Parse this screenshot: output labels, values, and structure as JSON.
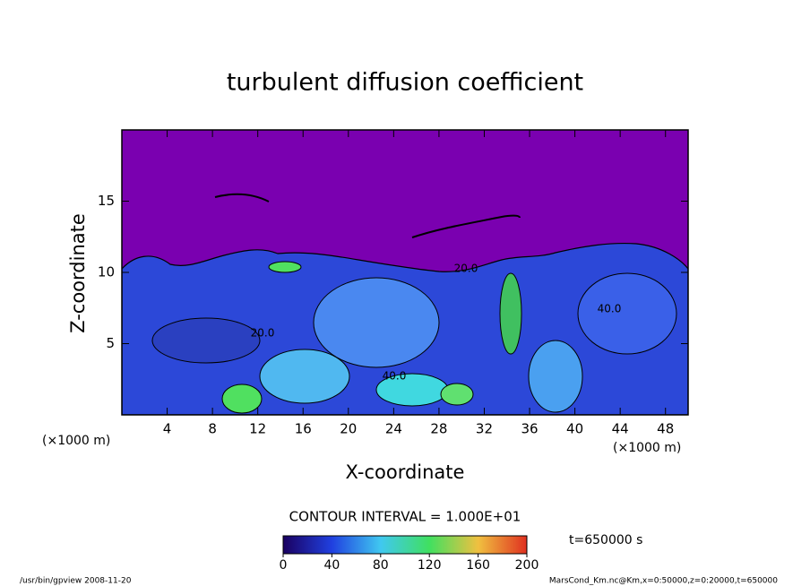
{
  "chart_data": {
    "type": "contour",
    "title": "turbulent diffusion coefficient",
    "xlabel": "X-coordinate",
    "ylabel": "Z-coordinate",
    "xunit": "(×1000 m)",
    "yunit": "(×1000 m)",
    "xlim": [
      0,
      50
    ],
    "xticks": [
      4,
      8,
      12,
      16,
      20,
      24,
      28,
      32,
      36,
      40,
      44,
      48
    ],
    "ylim": [
      0,
      20
    ],
    "yticks": [
      5,
      10,
      15
    ],
    "contour_labels": [
      "20.0",
      "40.0",
      "20.0",
      "40.0"
    ],
    "contour_interval": "CONTOUR INTERVAL = 1.000E+01",
    "time_label": "t=650000 s",
    "colorbar": {
      "lim": [
        0,
        200
      ],
      "ticks": [
        0,
        40,
        80,
        120,
        160,
        200
      ]
    },
    "footer_left": "/usr/bin/gpview   2008-11-20",
    "footer_right": "MarsCond_Km.nc@Km,x=0:50000,z=0:20000,t=650000"
  }
}
